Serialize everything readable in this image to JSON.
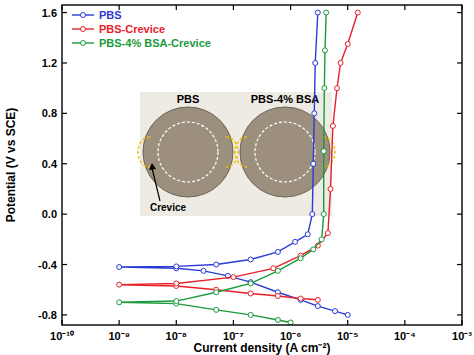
{
  "chart_data": {
    "type": "line",
    "x_label": "Current density (A cm⁻²)",
    "y_label": "Potential (V vs SCE)",
    "log": "x",
    "legend": "top-left",
    "marker": "circle",
    "xlim": [
      1e-10,
      0.001
    ],
    "ylim": [
      -0.88,
      1.66
    ],
    "xticks": [
      {
        "value": 1e-10,
        "label": "10⁻¹⁰"
      },
      {
        "value": 1e-09,
        "label": "10⁻⁹"
      },
      {
        "value": 1e-08,
        "label": "10⁻⁸"
      },
      {
        "value": 1e-07,
        "label": "10⁻⁷"
      },
      {
        "value": 1e-06,
        "label": "10⁻⁶"
      },
      {
        "value": 1e-05,
        "label": "10⁻⁵"
      },
      {
        "value": 0.0001,
        "label": "10⁻⁴"
      },
      {
        "value": 0.001,
        "label": "10⁻³"
      }
    ],
    "yticks": [
      -0.8,
      -0.4,
      {
        "value": 0,
        "label": "0.0"
      },
      0.4,
      0.8,
      1.2,
      1.6
    ],
    "annotations": [
      "PBS",
      "PBS-4% BSA",
      "Crevice"
    ],
    "series": [
      {
        "name": "PBS",
        "color": "#2a3bd6",
        "x": [
          1e-05,
          6e-06,
          3e-06,
          1.5e-06,
          6e-07,
          2e-07,
          8e-08,
          3e-08,
          1e-08,
          1e-09,
          1e-08,
          5e-08,
          2e-07,
          6e-07,
          1.2e-06,
          2e-06,
          2.4e-06,
          2.5e-06,
          2.6e-06,
          2.7e-06,
          3e-06
        ],
        "values": [
          -0.8,
          -0.77,
          -0.73,
          -0.68,
          -0.62,
          -0.54,
          -0.49,
          -0.45,
          -0.43,
          -0.42,
          -0.415,
          -0.4,
          -0.36,
          -0.3,
          -0.22,
          -0.16,
          0.0,
          0.4,
          0.8,
          1.2,
          1.6
        ]
      },
      {
        "name": "PBS-Crevice",
        "color": "#e8202a",
        "x": [
          3e-06,
          1.5e-06,
          6e-07,
          2e-07,
          5e-08,
          1e-08,
          1e-09,
          1e-08,
          1e-07,
          5e-07,
          1.5e-06,
          3e-06,
          4.5e-06,
          5e-06,
          5.5e-06,
          6.5e-06,
          7.5e-06,
          1e-05,
          1.5e-05
        ],
        "values": [
          -0.68,
          -0.67,
          -0.65,
          -0.63,
          -0.6,
          -0.57,
          -0.56,
          -0.55,
          -0.5,
          -0.43,
          -0.33,
          -0.25,
          -0.15,
          0.2,
          0.7,
          1.0,
          1.2,
          1.35,
          1.6
        ]
      },
      {
        "name": "PBS-4% BSA-Crevice",
        "color": "#1a9a3a",
        "x": [
          1e-06,
          6e-07,
          2e-07,
          5e-08,
          1e-08,
          1e-09,
          1e-08,
          5e-08,
          2e-07,
          6e-07,
          1.5e-06,
          2.5e-06,
          3.5e-06,
          3.8e-06,
          3.8e-06,
          3.9e-06,
          4e-06,
          4.2e-06
        ],
        "values": [
          -0.86,
          -0.84,
          -0.8,
          -0.76,
          -0.71,
          -0.7,
          -0.69,
          -0.62,
          -0.55,
          -0.45,
          -0.35,
          -0.28,
          -0.2,
          0.0,
          0.5,
          1.0,
          1.3,
          1.6
        ]
      }
    ]
  }
}
